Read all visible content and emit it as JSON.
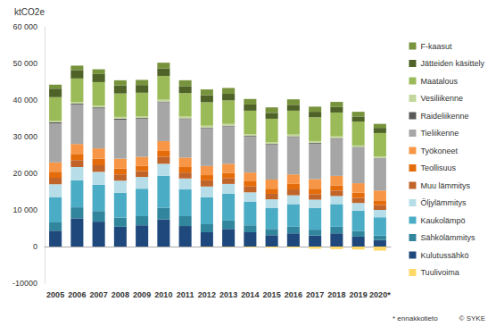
{
  "chart_data": {
    "type": "bar",
    "stacked": true,
    "grid": false,
    "legend": "right",
    "y_label": "ktCO2e",
    "annotations": [
      "* ennakkotieto",
      "© SYKE"
    ],
    "categories": [
      "2005",
      "2006",
      "2007",
      "2008",
      "2009",
      "2010",
      "2011",
      "2012",
      "2013",
      "2014",
      "2015",
      "2016",
      "2017",
      "2018",
      "2019",
      "2020*"
    ],
    "ylim": [
      -10000,
      60000
    ],
    "yticks": [
      {
        "value": -10000,
        "label": "-10000"
      },
      0,
      {
        "value": 10000,
        "label": "10 000"
      },
      {
        "value": 20000,
        "label": "20 000"
      },
      {
        "value": 30000,
        "label": "30 000"
      },
      {
        "value": 40000,
        "label": "40 000"
      },
      {
        "value": 50000,
        "label": "50 000"
      },
      {
        "value": 60000,
        "label": "60 000"
      }
    ],
    "series": [
      {
        "name": "Kulutussähkö",
        "color": "#1f497d",
        "values": [
          4300,
          7700,
          6800,
          5400,
          5800,
          7400,
          5600,
          3900,
          4800,
          3900,
          3100,
          3600,
          3000,
          3600,
          2700,
          1800
        ]
      },
      {
        "name": "Sähkölämmitys",
        "color": "#31859c",
        "values": [
          2300,
          3000,
          2900,
          2500,
          2500,
          3200,
          2700,
          2200,
          2300,
          1900,
          1700,
          1800,
          1600,
          1800,
          1500,
          1200
        ]
      },
      {
        "name": "Kaukolämpö",
        "color": "#4bacc6",
        "values": [
          6800,
          7400,
          7200,
          6800,
          7500,
          8700,
          7300,
          7400,
          7300,
          6500,
          5700,
          6200,
          5900,
          6200,
          5600,
          5000
        ]
      },
      {
        "name": "Öljylämmitys",
        "color": "#b7dee8",
        "values": [
          3600,
          3600,
          3500,
          3300,
          3200,
          3300,
          3000,
          2900,
          2700,
          2500,
          2400,
          2400,
          2300,
          2200,
          2100,
          2000
        ]
      },
      {
        "name": "Muu lämmitys",
        "color": "#c0642a",
        "values": [
          1800,
          1900,
          1800,
          1700,
          1600,
          1900,
          1600,
          1700,
          1600,
          1600,
          1500,
          1600,
          1500,
          1500,
          1400,
          1300
        ]
      },
      {
        "name": "Teollisuus",
        "color": "#e46c0a",
        "values": [
          1600,
          1700,
          1800,
          1600,
          1400,
          1600,
          1500,
          1400,
          1400,
          1400,
          1400,
          1500,
          1500,
          1400,
          1400,
          1300
        ]
      },
      {
        "name": "Työkoneet",
        "color": "#f79646",
        "values": [
          2600,
          2700,
          2800,
          2700,
          2500,
          2700,
          2600,
          2500,
          2500,
          2400,
          2500,
          2600,
          2600,
          2600,
          2600,
          2700
        ]
      },
      {
        "name": "Tieliikenne",
        "color": "#a6a6a6",
        "values": [
          10600,
          10700,
          10900,
          10600,
          10400,
          10600,
          10500,
          10300,
          10200,
          9800,
          9500,
          10200,
          9700,
          10100,
          9800,
          8800
        ]
      },
      {
        "name": "Raideliikenne",
        "color": "#595959",
        "values": [
          300,
          300,
          300,
          300,
          200,
          200,
          200,
          200,
          200,
          200,
          200,
          200,
          200,
          200,
          100,
          100
        ]
      },
      {
        "name": "Vesiliikenne",
        "color": "#c3d69b",
        "values": [
          500,
          500,
          500,
          500,
          500,
          500,
          500,
          500,
          500,
          500,
          500,
          500,
          500,
          500,
          400,
          400
        ]
      },
      {
        "name": "Maatalous",
        "color": "#9bbb59",
        "values": [
          6400,
          6400,
          6400,
          6400,
          6400,
          6500,
          6400,
          6400,
          6400,
          6400,
          6400,
          6500,
          6500,
          6500,
          6500,
          6400
        ]
      },
      {
        "name": "Jätteiden käsittely",
        "color": "#4f6228",
        "values": [
          2300,
          2300,
          2200,
          2200,
          2100,
          2000,
          1900,
          1900,
          1800,
          1700,
          1600,
          1600,
          1500,
          1500,
          1400,
          1400
        ]
      },
      {
        "name": "F-kaasut",
        "color": "#77933c",
        "values": [
          1100,
          1200,
          1300,
          1400,
          1400,
          1600,
          1600,
          1600,
          1600,
          1500,
          1500,
          1500,
          1400,
          1400,
          1300,
          1100
        ]
      },
      {
        "name": "Tuulivoima",
        "color": "#ffd966",
        "values": [
          0,
          0,
          0,
          0,
          0,
          0,
          0,
          -100,
          -100,
          -200,
          -300,
          -300,
          -600,
          -700,
          -800,
          -1100
        ]
      }
    ]
  }
}
